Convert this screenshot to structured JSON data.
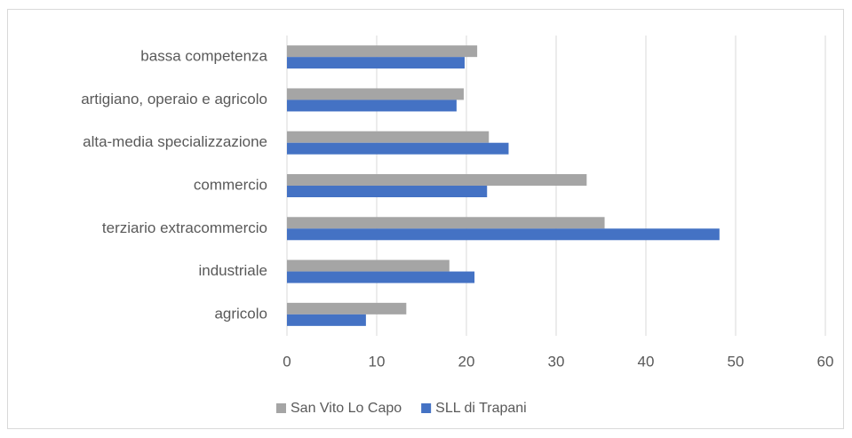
{
  "chart_data": {
    "type": "hbar",
    "categories": [
      "bassa competenza",
      "artigiano, operaio e agricolo",
      "alta-media specializzazione",
      "commercio",
      "terziario extracommercio",
      "industriale",
      "agricolo"
    ],
    "series": [
      {
        "name": "San Vito Lo Capo",
        "color": "#a5a5a5",
        "values": [
          21.2,
          19.7,
          22.5,
          33.4,
          35.4,
          18.1,
          13.3
        ]
      },
      {
        "name": "SLL di Trapani",
        "color": "#4472c4",
        "values": [
          19.8,
          18.9,
          24.7,
          22.3,
          48.2,
          20.9,
          8.8
        ]
      }
    ],
    "xlim": [
      0,
      60
    ],
    "xticks": [
      0,
      10,
      20,
      30,
      40,
      50,
      60
    ],
    "grid": true,
    "legend": "bottom"
  }
}
